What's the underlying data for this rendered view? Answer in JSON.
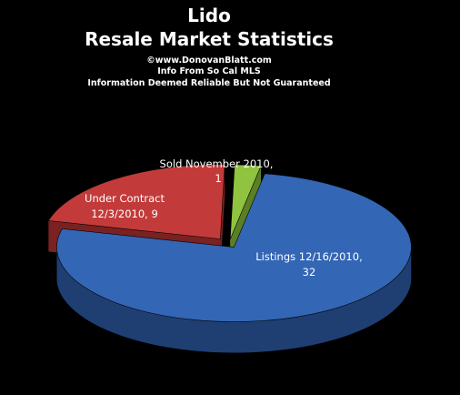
{
  "chart_data": {
    "type": "pie",
    "title": "Lido",
    "subtitle": "Resale Market Statistics",
    "notes": [
      "©www.DonovanBlatt.com",
      "Info  From So Cal MLS",
      "Information Deemed Reliable But Not Guaranteed"
    ],
    "three_d": true,
    "exploded": true,
    "slices": [
      {
        "category": "Listings 12/16/2010",
        "value": 32,
        "label_line1": "Listings 12/16/2010,",
        "label_line2": "32",
        "color": "#3366b4",
        "side_color": "#1f3f73"
      },
      {
        "category": "Under Contract 12/3/2010",
        "value": 9,
        "label_line1": "Under Contract",
        "label_line2": "12/3/2010, 9",
        "color": "#c23b3a",
        "side_color": "#7a2221"
      },
      {
        "category": "Sold November 2010",
        "value": 1,
        "label_line1": "Sold November  2010,",
        "label_line2": "1",
        "color": "#8fc340",
        "side_color": "#5b7f25"
      }
    ]
  }
}
